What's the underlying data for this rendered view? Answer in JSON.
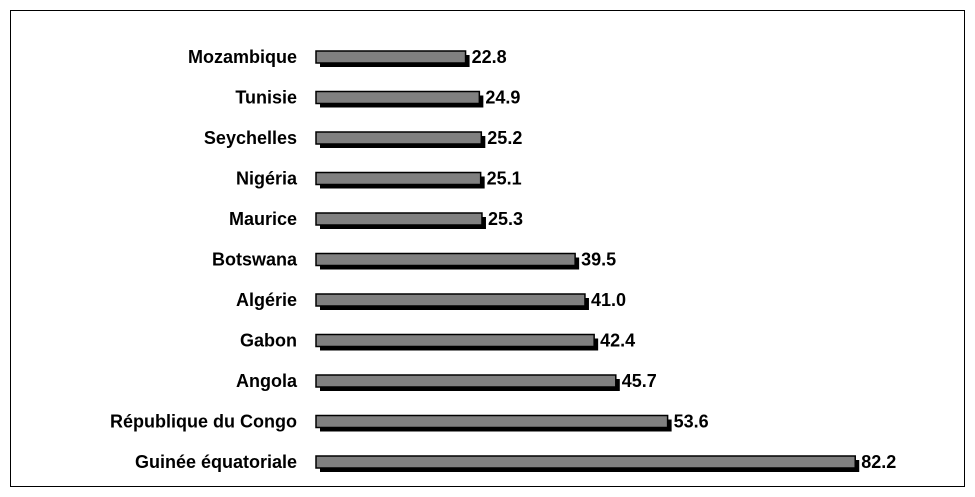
{
  "chart_data": {
    "type": "bar",
    "orientation": "horizontal",
    "categories": [
      "Mozambique",
      "Tunisie",
      "Seychelles",
      "Nigéria",
      "Maurice",
      "Botswana",
      "Algérie",
      "Gabon",
      "Angola",
      "République du Congo",
      "Guinée équatoriale"
    ],
    "values": [
      22.8,
      24.9,
      25.2,
      25.1,
      25.3,
      39.5,
      41.0,
      42.4,
      45.7,
      53.6,
      82.2
    ],
    "value_labels": [
      "22.8",
      "24.9",
      "25.2",
      "25.1",
      "25.3",
      "39.5",
      "41.0",
      "42.4",
      "45.7",
      "53.6",
      "82.2"
    ],
    "color": "#808080"
  }
}
